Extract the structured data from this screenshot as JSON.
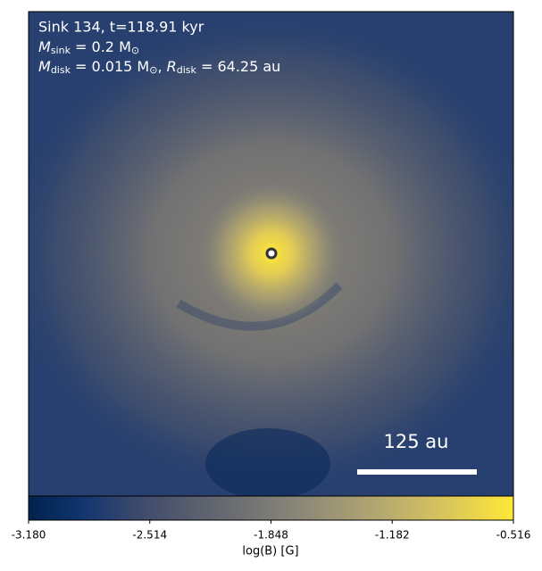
{
  "chart_data": {
    "type": "heatmap",
    "annotations": [
      "Sink 134, t=118.91 kyr"
    ],
    "mass_line": {
      "symbol": "M",
      "sub": "sink",
      "rest": " = 0.2 M",
      "sun": "⊙"
    },
    "disk_line": {
      "symbol": "M",
      "sub": "disk",
      "rest": " = 0.015 M",
      "sun": "⊙",
      "sep": ", ",
      "symbol2": "R",
      "sub2": "disk",
      "rest2": " = 64.25 au"
    },
    "scale_bar_label": "125 au",
    "colorbar_label": "log(B) [G]",
    "clim": [
      -3.18,
      -0.516
    ],
    "colorbar_ticks": [
      {
        "value": -3.18,
        "label": "-3.180"
      },
      {
        "value": -2.514,
        "label": "-2.514"
      },
      {
        "value": -1.848,
        "label": "-1.848"
      },
      {
        "value": -1.182,
        "label": "-1.182"
      },
      {
        "value": -0.516,
        "label": "-0.516"
      }
    ],
    "colormap": [
      "#00224e",
      "#123570",
      "#3b496c",
      "#575d6d",
      "#707173",
      "#8a8678",
      "#a59c74",
      "#c3b369",
      "#e1cc55",
      "#fee838"
    ]
  }
}
